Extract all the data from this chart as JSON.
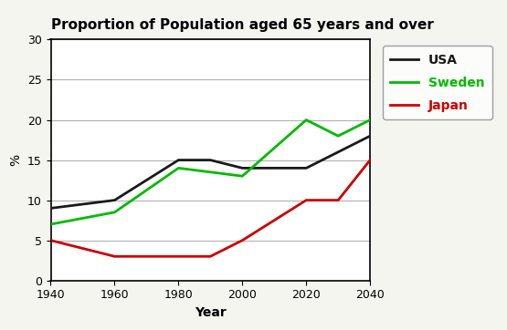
{
  "title": "Proportion of Population aged 65 years and over",
  "xlabel": "Year",
  "ylabel": "%",
  "outer_bg": "#f5f5f0",
  "plot_bg": "#ffffff",
  "years": [
    1940,
    1960,
    1980,
    1990,
    2000,
    2020,
    2030,
    2040
  ],
  "usa": [
    9,
    10,
    15,
    15,
    14,
    14,
    16,
    18
  ],
  "sweden": [
    7,
    8.5,
    14,
    13.5,
    13,
    20,
    18,
    20
  ],
  "japan": [
    5,
    3,
    3,
    3,
    5,
    10,
    10,
    15
  ],
  "usa_color": "#1a1a1a",
  "sweden_color": "#00bb00",
  "japan_color": "#cc0000",
  "legend_labels": [
    "USA",
    "Sweden",
    "Japan"
  ],
  "legend_colors": [
    "#1a1a1a",
    "#00bb00",
    "#cc0000"
  ],
  "ylim": [
    0,
    30
  ],
  "yticks": [
    0,
    5,
    10,
    15,
    20,
    25,
    30
  ],
  "xticks": [
    1940,
    1960,
    1980,
    2000,
    2020,
    2040
  ],
  "title_fontsize": 11,
  "axis_label_fontsize": 10,
  "tick_fontsize": 9,
  "legend_fontsize": 10,
  "linewidth": 2.0
}
